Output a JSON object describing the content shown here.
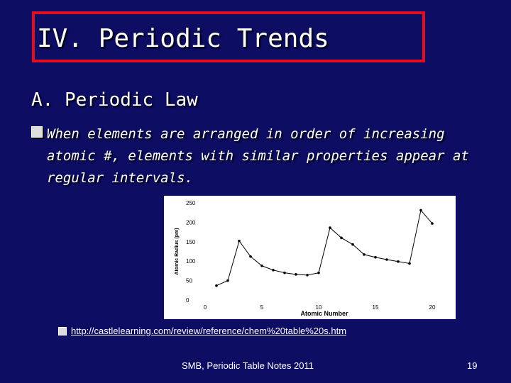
{
  "slide": {
    "title": "IV. Periodic Trends",
    "subheading": "A. Periodic Law",
    "bullet_lines": [
      "When elements are arranged in order of increasing",
      "atomic #, elements with similar properties appear at",
      "regular intervals."
    ],
    "link": "http://castlelearning.com/review/reference/chem%20table%20s.htm",
    "footer": "SMB, Periodic Table Notes 2011",
    "slide_number": "19",
    "colors": {
      "background": "#0d0d63",
      "title_border": "#e01020",
      "text": "#ffffff"
    }
  },
  "chart_data": {
    "type": "line",
    "xlabel": "Atomic Number",
    "ylabel": "Atomic Radius (pm)",
    "xlim": [
      0,
      20
    ],
    "ylim": [
      0,
      250
    ],
    "x_ticks": [
      0,
      5,
      10,
      15,
      20
    ],
    "y_ticks": [
      0,
      50,
      100,
      150,
      200,
      250
    ],
    "x": [
      1,
      2,
      3,
      4,
      5,
      6,
      7,
      8,
      9,
      10,
      11,
      12,
      13,
      14,
      15,
      16,
      17,
      18,
      19,
      20
    ],
    "y": [
      37,
      50,
      152,
      112,
      88,
      77,
      70,
      66,
      64,
      70,
      186,
      160,
      143,
      117,
      110,
      104,
      99,
      94,
      231,
      197
    ]
  }
}
